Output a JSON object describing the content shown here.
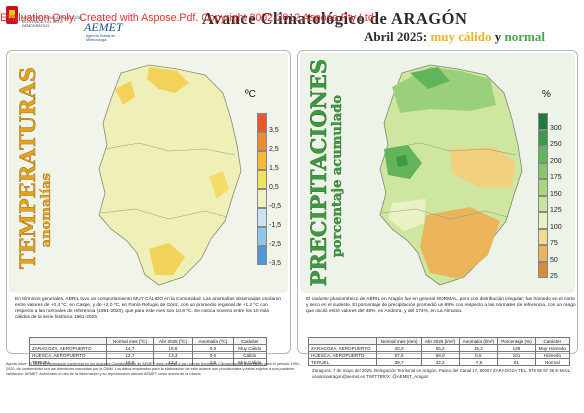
{
  "header": {
    "ministry": "MINISTERIO PARA LA TRANSICIÓN ECOLÓGICA Y EL RETO DEMOGRÁFICO",
    "agency_name": "AEMET",
    "agency_sub": "Agencia Estatal de Meteorología",
    "eval_banner": "Evaluation Only. Created with Aspose.Pdf. Copyright 2002-2012 Aspose Pty Ltd.",
    "title": "Avance Climatológico de ARAGÓN",
    "subtitle_month": "Abril 2025:",
    "subtitle_temp": "muy cálido",
    "subtitle_and": "y",
    "subtitle_prec": "normal"
  },
  "temperature": {
    "title": "TEMPERATURAS",
    "subtitle": "anomalías",
    "unit": "ºC",
    "legend": [
      {
        "label": "3,5",
        "color": "#e9572b"
      },
      {
        "label": "2,5",
        "color": "#f08a32"
      },
      {
        "label": "1,5",
        "color": "#f5b93a"
      },
      {
        "label": "0,5",
        "color": "#f1e25e"
      },
      {
        "label": "-0,5",
        "color": "#f2f0c0"
      },
      {
        "label": "-1,5",
        "color": "#c7e4f2"
      },
      {
        "label": "-2,5",
        "color": "#8ec5ea"
      },
      {
        "label": "-3,5",
        "color": "#4f97d6"
      }
    ],
    "description": "En términos generales, ABRIL tuvo un comportamiento MUY CÁLIDO en la Comunidad. Las anomalías observadas oscilaron entre valores de +0,4 ºC, en Caspe, y de +2,0 ºC, en Fanlo-Refugio de Góriz, con un promedio regional de +1,2 ºC con respecto a las normales de referencia (1991-2020), que para este mes son 10,8 ºC. Se coloca noveno entre los 10 más cálidos de la serie histórica 1961-2025.",
    "table": {
      "headers": [
        "",
        "Normal mes (ºC)",
        "Abr 2025 (ºC)",
        "Anomalía (ºC)",
        "Carácter"
      ],
      "rows": [
        [
          "ZARAGOZA, AEROPUERTO",
          "14,7",
          "15,6",
          "0,9",
          "Muy Cálido"
        ],
        [
          "HUESCA, AEROPUERTO",
          "12,7",
          "13,3",
          "0,6",
          "Cálido"
        ],
        [
          "TERUEL",
          "10,8",
          "12,4",
          "1,6",
          "Muy Cálido"
        ]
      ]
    }
  },
  "precipitation": {
    "title": "PRECIPITACIONES",
    "subtitle": "porcentaje acumulado",
    "unit": "%",
    "legend": [
      {
        "label": "300",
        "color": "#1f7a3c"
      },
      {
        "label": "250",
        "color": "#3d9a4a"
      },
      {
        "label": "200",
        "color": "#62b45a"
      },
      {
        "label": "175",
        "color": "#86c66a"
      },
      {
        "label": "150",
        "color": "#a9d57d"
      },
      {
        "label": "125",
        "color": "#cbe59a"
      },
      {
        "label": "100",
        "color": "#eaf2c3"
      },
      {
        "label": "75",
        "color": "#f4dc8e"
      },
      {
        "label": "50",
        "color": "#ecb45a"
      },
      {
        "label": "25",
        "color": "#d98a35"
      }
    ],
    "description": "El carácter pluviométrico de ABRIL en Aragón fue en general NORMAL, pero con distribución irregular: fue húmedo en el norte y seco en el sudeste. El porcentaje de precipitación promedió un 99% con respecto a las normales de referencia, con un rango que osciló entre valores del 48%, en Andorra, y del 174%, en La Almunia.",
    "table": {
      "headers": [
        "",
        "Normal mes (mm)",
        "Abr 2025 (l/m²)",
        "Anomalía (l/m²)",
        "Porcentaje (%)",
        "Carácter"
      ],
      "rows": [
        [
          "ZARAGOZA, AEROPUERTO",
          "40,0",
          "55,2",
          "15,2",
          "138",
          "Muy Húmedo"
        ],
        [
          "HUESCA, AEROPUERTO",
          "57,5",
          "58,0",
          "0,5",
          "101",
          "Húmedo"
        ],
        [
          "TERUEL",
          "39,7",
          "32,2",
          "-7,5",
          "81",
          "Normal"
        ]
      ]
    }
  },
  "footer": {
    "left": "Ayuda clave: El 2025 la información contenida en los Avances Climatológicos de AEMET está referida a las nuevas Normales Climatológicas Estándares para el periodo 1991-2020, de conformidad con las directrices marcadas por la OMM. Los datos empleados para la elaboración de este avance son provisionales y están sujetos a una posterior validación. AEMET: Autorizado el uso de la información y su reproducción citando AEMET como autora de la misma.",
    "right": "Zaragoza, 7 de mayo del 2025. Delegación Territorial en Aragón. Paseo del Canal 17, 50007 ZARAGOZA TEL. 976 56 97 36 E-MAIL: usuarioaaragon@aemet.es TWITTER/X: @AEMET_Aragon"
  }
}
